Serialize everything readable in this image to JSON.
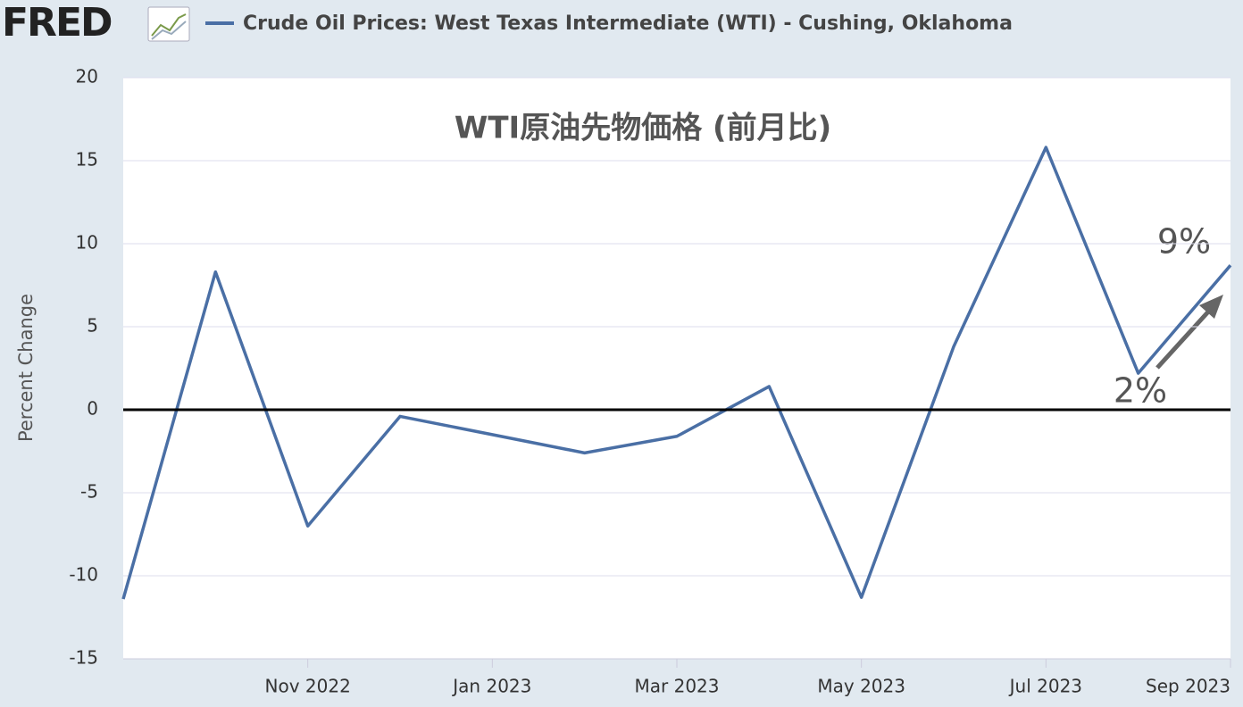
{
  "logo": "FRED",
  "chart_data": {
    "type": "line",
    "title": "WTI原油先物価格 (前月比)",
    "y_label": "Percent Change",
    "x": [
      "2022-09",
      "2022-10",
      "2022-11",
      "2022-12",
      "2023-01",
      "2023-02",
      "2023-03",
      "2023-04",
      "2023-05",
      "2023-06",
      "2023-07",
      "2023-08",
      "2023-09"
    ],
    "series": [
      {
        "name": "Crude Oil Prices: West Texas Intermediate (WTI) - Cushing, Oklahoma",
        "color": "#4a6fa5",
        "values": [
          -11.4,
          8.3,
          -7.0,
          -0.4,
          -1.5,
          -2.6,
          -1.6,
          1.4,
          -11.3,
          3.8,
          15.8,
          2.2,
          8.7
        ]
      }
    ],
    "xlim": [
      "2022-09",
      "2023-09"
    ],
    "xticks": [
      {
        "value": "2022-11",
        "label": "Nov 2022"
      },
      {
        "value": "2023-01",
        "label": "Jan 2023"
      },
      {
        "value": "2023-03",
        "label": "Mar 2023"
      },
      {
        "value": "2023-05",
        "label": "May 2023"
      },
      {
        "value": "2023-07",
        "label": "Jul 2023"
      },
      {
        "value": "2023-09",
        "label": "Sep 2023"
      }
    ],
    "ylim": [
      -15,
      20
    ],
    "yticks": [
      -15,
      -10,
      -5,
      0,
      5,
      10,
      15,
      20
    ],
    "grid": true,
    "zero_line": true,
    "annotations": [
      "9%",
      "2%"
    ]
  }
}
